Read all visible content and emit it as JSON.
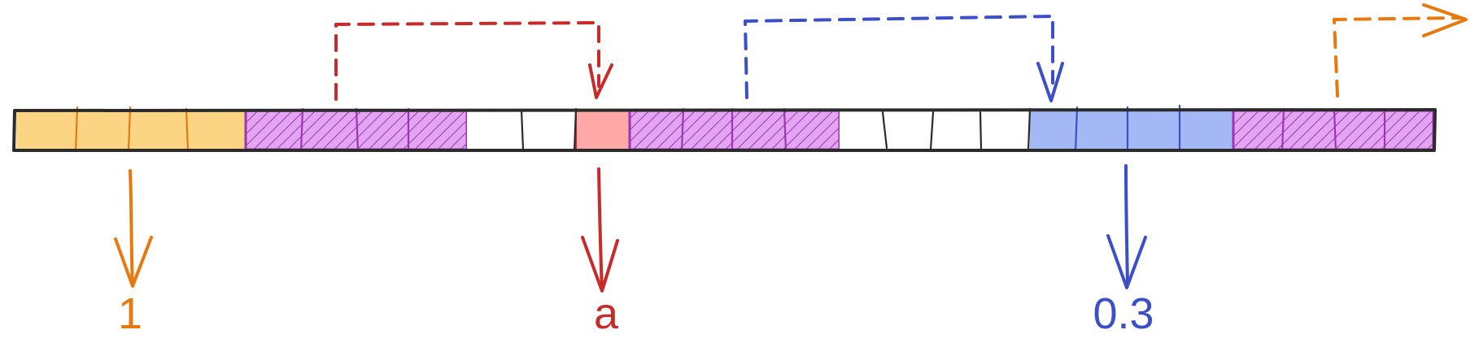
{
  "colors": {
    "orange": "#e8790f",
    "red": "#c92a2a",
    "blue": "#3b4fc8",
    "purple": "#9c36b5",
    "outline": "#2b2b2b",
    "yellow_fill": "#fcd584",
    "red_fill": "#ffa8a8",
    "blue_fill": "#a5b8f6",
    "purple_fill": "#e3a5f2"
  },
  "segments": [
    {
      "kind": "value",
      "color": "yellow",
      "cells": 4
    },
    {
      "kind": "hatched",
      "cells": 4
    },
    {
      "kind": "empty",
      "cells": 2
    },
    {
      "kind": "value",
      "color": "red",
      "cells": 1
    },
    {
      "kind": "hatched",
      "cells": 4
    },
    {
      "kind": "empty",
      "cells": 4
    },
    {
      "kind": "value",
      "color": "blue",
      "cells": 4
    },
    {
      "kind": "hatched",
      "cells": 4
    }
  ],
  "labels": {
    "yellow": "1",
    "red": "a",
    "blue": "0.3"
  },
  "pointers": [
    {
      "color": "red",
      "from_segment": 1,
      "to_segment": 3
    },
    {
      "color": "blue",
      "from_segment": 4,
      "to_segment": 6
    },
    {
      "color": "orange",
      "from_segment": 7,
      "to": "continues-right"
    }
  ]
}
